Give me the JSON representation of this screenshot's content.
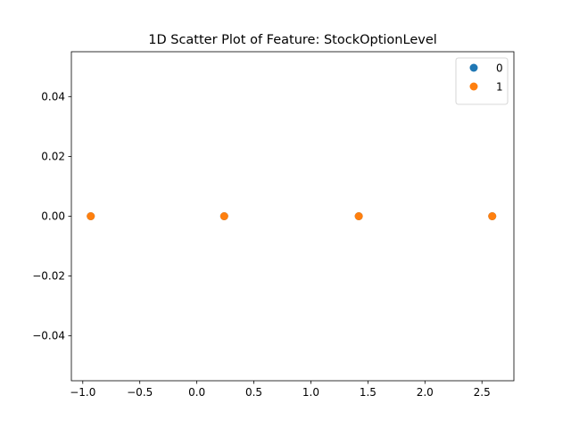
{
  "chart_data": {
    "type": "scatter",
    "title": "1D Scatter Plot of Feature: StockOptionLevel",
    "xlabel": "",
    "ylabel": "",
    "xlim": [
      -1.1,
      2.78
    ],
    "ylim": [
      -0.055,
      0.055
    ],
    "x_ticks": [
      -1.0,
      -0.5,
      0.0,
      0.5,
      1.0,
      1.5,
      2.0,
      2.5
    ],
    "x_tick_labels": [
      "−1.0",
      "−0.5",
      "0.0",
      "0.5",
      "1.0",
      "1.5",
      "2.0",
      "2.5"
    ],
    "y_ticks": [
      -0.04,
      -0.02,
      0.0,
      0.02,
      0.04
    ],
    "y_tick_labels": [
      "−0.04",
      "−0.02",
      "0.00",
      "0.02",
      "0.04"
    ],
    "grid": false,
    "legend_position": "top-right",
    "series": [
      {
        "name": "0",
        "color": "#1f77b4",
        "points": [
          {
            "x": -0.93,
            "y": 0.0
          },
          {
            "x": 0.24,
            "y": 0.0
          },
          {
            "x": 1.42,
            "y": 0.0
          },
          {
            "x": 2.59,
            "y": 0.0
          }
        ]
      },
      {
        "name": "1",
        "color": "#ff7f0e",
        "points": [
          {
            "x": -0.93,
            "y": 0.0
          },
          {
            "x": 0.24,
            "y": 0.0
          },
          {
            "x": 1.42,
            "y": 0.0
          },
          {
            "x": 2.59,
            "y": 0.0
          }
        ]
      }
    ]
  }
}
